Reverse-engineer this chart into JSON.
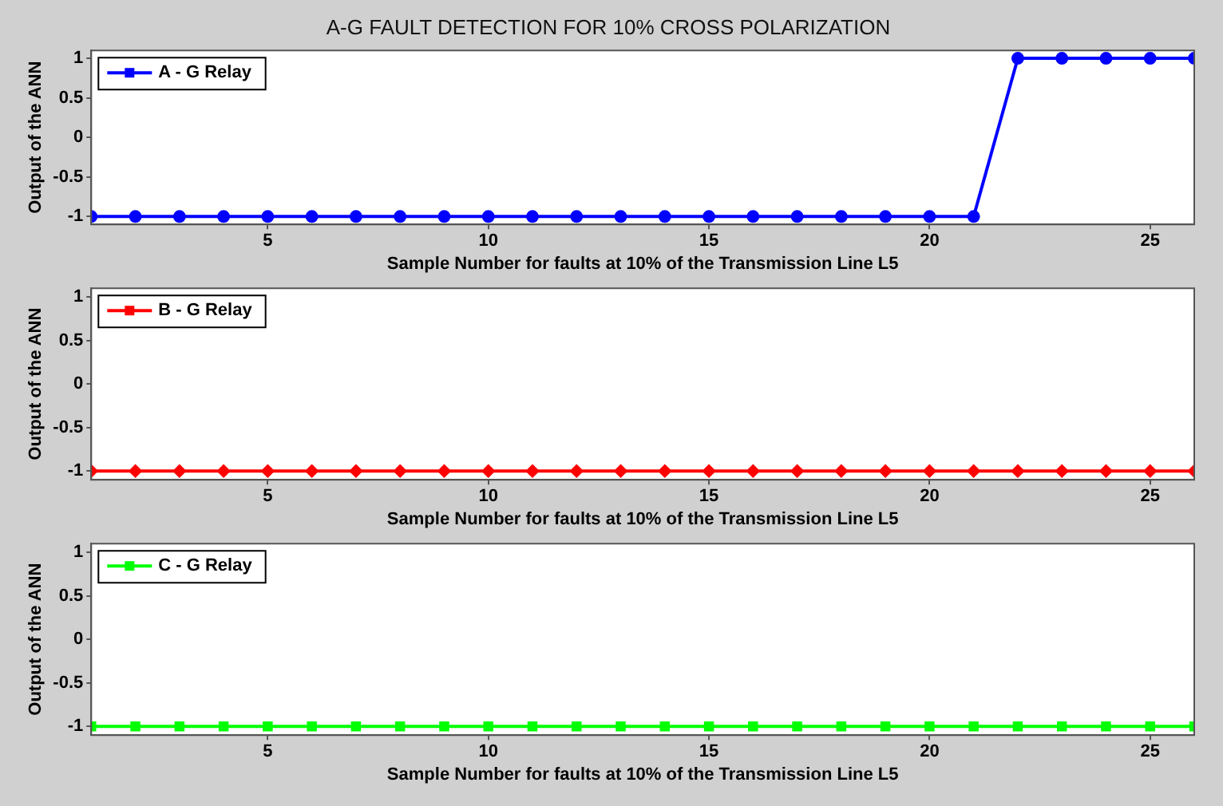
{
  "chart_data": [
    {
      "type": "line",
      "title": "A-G FAULT DETECTION FOR 10% CROSS POLARIZATION",
      "xlabel": "Sample Number for faults at 10% of the Transmission Line L5",
      "ylabel": "Output of the ANN",
      "x": [
        1,
        2,
        3,
        4,
        5,
        6,
        7,
        8,
        9,
        10,
        11,
        12,
        13,
        14,
        15,
        16,
        17,
        18,
        19,
        20,
        21,
        22,
        23,
        24,
        25,
        26
      ],
      "series": [
        {
          "name": "A - G Relay",
          "color": "#0000ff",
          "values": [
            -1,
            -1,
            -1,
            -1,
            -1,
            -1,
            -1,
            -1,
            -1,
            -1,
            -1,
            -1,
            -1,
            -1,
            -1,
            -1,
            -1,
            -1,
            -1,
            -1,
            -1,
            1,
            1,
            1,
            1,
            1
          ]
        }
      ],
      "xlim": [
        1,
        26
      ],
      "xticks": [
        5,
        10,
        15,
        20,
        25
      ],
      "ylim": [
        -1.1,
        1.1
      ],
      "yticks": [
        -1,
        -0.5,
        0,
        0.5,
        1
      ],
      "legend": "top left",
      "marker": "circle",
      "line_style": "solid"
    },
    {
      "type": "line",
      "xlabel": "Sample Number for faults at 10% of the Transmission Line L5",
      "ylabel": "Output of the ANN",
      "x": [
        1,
        2,
        3,
        4,
        5,
        6,
        7,
        8,
        9,
        10,
        11,
        12,
        13,
        14,
        15,
        16,
        17,
        18,
        19,
        20,
        21,
        22,
        23,
        24,
        25,
        26
      ],
      "series": [
        {
          "name": "B - G Relay",
          "color": "#ff0000",
          "values": [
            -1,
            -1,
            -1,
            -1,
            -1,
            -1,
            -1,
            -1,
            -1,
            -1,
            -1,
            -1,
            -1,
            -1,
            -1,
            -1,
            -1,
            -1,
            -1,
            -1,
            -1,
            -1,
            -1,
            -1,
            -1,
            -1
          ]
        }
      ],
      "xlim": [
        1,
        26
      ],
      "xticks": [
        5,
        10,
        15,
        20,
        25
      ],
      "ylim": [
        -1.1,
        1.1
      ],
      "yticks": [
        -1,
        -0.5,
        0,
        0.5,
        1
      ],
      "legend": "top left",
      "marker": "diamond",
      "line_style": "solid"
    },
    {
      "type": "line",
      "xlabel": "Sample Number for faults at 10% of the Transmission Line L5",
      "ylabel": "Output of the ANN",
      "x": [
        1,
        2,
        3,
        4,
        5,
        6,
        7,
        8,
        9,
        10,
        11,
        12,
        13,
        14,
        15,
        16,
        17,
        18,
        19,
        20,
        21,
        22,
        23,
        24,
        25,
        26
      ],
      "series": [
        {
          "name": "C - G Relay",
          "color": "#00ff00",
          "values": [
            -1,
            -1,
            -1,
            -1,
            -1,
            -1,
            -1,
            -1,
            -1,
            -1,
            -1,
            -1,
            -1,
            -1,
            -1,
            -1,
            -1,
            -1,
            -1,
            -1,
            -1,
            -1,
            -1,
            -1,
            -1,
            -1
          ]
        }
      ],
      "xlim": [
        1,
        26
      ],
      "xticks": [
        5,
        10,
        15,
        20,
        25
      ],
      "ylim": [
        -1.1,
        1.1
      ],
      "yticks": [
        -1,
        -0.5,
        0,
        0.5,
        1
      ],
      "legend": "top left",
      "marker": "square",
      "line_style": "solid"
    }
  ]
}
